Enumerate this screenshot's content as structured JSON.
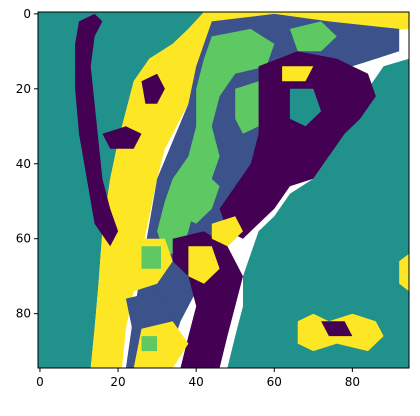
{
  "chart_data": {
    "type": "heatmap",
    "title": "",
    "xlabel": "",
    "ylabel": "",
    "rows": 95,
    "cols": 95,
    "xlim": [
      -0.5,
      94.5
    ],
    "ylim": [
      94.5,
      -0.5
    ],
    "x_ticks": [
      0,
      20,
      40,
      60,
      80
    ],
    "y_ticks": [
      0,
      20,
      40,
      60,
      80
    ],
    "grid": false,
    "colormap": "viridis",
    "class_colors": {
      "0": "#440154",
      "1": "#3b528b",
      "2": "#21918c",
      "3": "#5ec962",
      "4": "#fde725"
    },
    "regions": [
      {
        "class": 2,
        "polygon": [
          [
            -0.5,
            -0.5
          ],
          [
            42,
            -0.5
          ],
          [
            38,
            4
          ],
          [
            34,
            8
          ],
          [
            28,
            12
          ],
          [
            24,
            18
          ],
          [
            22,
            26
          ],
          [
            20,
            34
          ],
          [
            18,
            44
          ],
          [
            16,
            58
          ],
          [
            15,
            72
          ],
          [
            14,
            84
          ],
          [
            13,
            94.5
          ],
          [
            -0.5,
            94.5
          ]
        ]
      },
      {
        "class": 4,
        "polygon": [
          [
            42,
            -0.5
          ],
          [
            94.5,
            -0.5
          ],
          [
            94.5,
            4
          ],
          [
            70,
            6
          ],
          [
            56,
            10
          ],
          [
            46,
            14
          ],
          [
            40,
            20
          ],
          [
            36,
            28
          ],
          [
            32,
            36
          ],
          [
            30,
            44
          ],
          [
            28,
            54
          ],
          [
            26,
            64
          ],
          [
            24,
            74
          ],
          [
            22,
            84
          ],
          [
            21,
            94.5
          ],
          [
            13,
            94.5
          ],
          [
            14,
            84
          ],
          [
            15,
            72
          ],
          [
            16,
            58
          ],
          [
            18,
            44
          ],
          [
            20,
            34
          ],
          [
            22,
            26
          ],
          [
            24,
            18
          ],
          [
            28,
            12
          ],
          [
            34,
            8
          ],
          [
            38,
            4
          ]
        ]
      },
      {
        "class": 1,
        "polygon": [
          [
            44,
            2
          ],
          [
            60,
            0
          ],
          [
            74,
            2
          ],
          [
            92,
            4
          ],
          [
            92,
            10
          ],
          [
            80,
            14
          ],
          [
            70,
            12
          ],
          [
            62,
            16
          ],
          [
            58,
            22
          ],
          [
            56,
            30
          ],
          [
            58,
            38
          ],
          [
            56,
            46
          ],
          [
            52,
            52
          ],
          [
            50,
            60
          ],
          [
            44,
            66
          ],
          [
            40,
            74
          ],
          [
            36,
            82
          ],
          [
            32,
            94.5
          ],
          [
            22,
            94.5
          ],
          [
            24,
            80
          ],
          [
            26,
            68
          ],
          [
            28,
            56
          ],
          [
            30,
            44
          ],
          [
            34,
            34
          ],
          [
            38,
            24
          ],
          [
            40,
            14
          ]
        ]
      },
      {
        "class": 3,
        "polygon": [
          [
            44,
            6
          ],
          [
            54,
            4
          ],
          [
            60,
            8
          ],
          [
            58,
            14
          ],
          [
            50,
            16
          ],
          [
            46,
            22
          ],
          [
            44,
            30
          ],
          [
            46,
            38
          ],
          [
            44,
            44
          ],
          [
            40,
            50
          ],
          [
            38,
            58
          ],
          [
            36,
            64
          ],
          [
            32,
            64
          ],
          [
            30,
            58
          ],
          [
            32,
            50
          ],
          [
            34,
            44
          ],
          [
            38,
            38
          ],
          [
            40,
            30
          ],
          [
            40,
            20
          ],
          [
            42,
            12
          ]
        ]
      },
      {
        "class": 3,
        "polygon": [
          [
            50,
            20
          ],
          [
            56,
            18
          ],
          [
            58,
            24
          ],
          [
            56,
            30
          ],
          [
            52,
            32
          ],
          [
            50,
            28
          ]
        ]
      },
      {
        "class": 3,
        "polygon": [
          [
            34,
            44
          ],
          [
            42,
            42
          ],
          [
            46,
            46
          ],
          [
            44,
            52
          ],
          [
            40,
            56
          ],
          [
            36,
            54
          ]
        ]
      },
      {
        "class": 3,
        "polygon": [
          [
            64,
            4
          ],
          [
            72,
            2
          ],
          [
            76,
            6
          ],
          [
            72,
            10
          ],
          [
            66,
            10
          ]
        ]
      },
      {
        "class": 0,
        "polygon": [
          [
            10,
            2
          ],
          [
            14,
            0
          ],
          [
            16,
            2
          ],
          [
            14,
            6
          ],
          [
            13,
            14
          ],
          [
            14,
            24
          ],
          [
            15,
            34
          ],
          [
            16,
            44
          ],
          [
            18,
            52
          ],
          [
            20,
            58
          ],
          [
            18,
            62
          ],
          [
            14,
            56
          ],
          [
            12,
            44
          ],
          [
            10,
            32
          ],
          [
            9,
            20
          ],
          [
            9,
            8
          ]
        ]
      },
      {
        "class": 0,
        "polygon": [
          [
            26,
            18
          ],
          [
            30,
            16
          ],
          [
            32,
            20
          ],
          [
            30,
            24
          ],
          [
            27,
            24
          ]
        ]
      },
      {
        "class": 0,
        "polygon": [
          [
            16,
            32
          ],
          [
            22,
            30
          ],
          [
            26,
            32
          ],
          [
            24,
            36
          ],
          [
            18,
            36
          ]
        ]
      },
      {
        "class": 2,
        "polygon": [
          [
            94.5,
            12
          ],
          [
            88,
            14
          ],
          [
            84,
            20
          ],
          [
            80,
            26
          ],
          [
            76,
            32
          ],
          [
            74,
            38
          ],
          [
            70,
            44
          ],
          [
            64,
            48
          ],
          [
            60,
            54
          ],
          [
            56,
            58
          ],
          [
            54,
            64
          ],
          [
            52,
            70
          ],
          [
            52,
            78
          ],
          [
            50,
            86
          ],
          [
            48,
            94.5
          ],
          [
            94.5,
            94.5
          ]
        ]
      },
      {
        "class": 0,
        "polygon": [
          [
            56,
            14
          ],
          [
            66,
            10
          ],
          [
            76,
            12
          ],
          [
            84,
            16
          ],
          [
            86,
            22
          ],
          [
            82,
            28
          ],
          [
            78,
            32
          ],
          [
            74,
            38
          ],
          [
            70,
            44
          ],
          [
            64,
            46
          ],
          [
            60,
            52
          ],
          [
            56,
            56
          ],
          [
            52,
            60
          ],
          [
            48,
            58
          ],
          [
            46,
            52
          ],
          [
            50,
            46
          ],
          [
            54,
            40
          ],
          [
            56,
            32
          ],
          [
            56,
            22
          ]
        ]
      },
      {
        "class": 2,
        "polygon": [
          [
            64,
            20
          ],
          [
            70,
            20
          ],
          [
            72,
            26
          ],
          [
            68,
            30
          ],
          [
            64,
            28
          ]
        ]
      },
      {
        "class": 4,
        "polygon": [
          [
            62,
            14
          ],
          [
            70,
            14
          ],
          [
            68,
            18
          ],
          [
            62,
            18
          ]
        ]
      },
      {
        "class": 0,
        "polygon": [
          [
            34,
            60
          ],
          [
            42,
            58
          ],
          [
            48,
            62
          ],
          [
            52,
            70
          ],
          [
            50,
            78
          ],
          [
            48,
            86
          ],
          [
            46,
            94.5
          ],
          [
            36,
            94.5
          ],
          [
            38,
            86
          ],
          [
            40,
            78
          ],
          [
            38,
            70
          ],
          [
            34,
            66
          ]
        ]
      },
      {
        "class": 4,
        "polygon": [
          [
            38,
            62
          ],
          [
            44,
            62
          ],
          [
            46,
            68
          ],
          [
            42,
            72
          ],
          [
            38,
            70
          ]
        ]
      },
      {
        "class": 4,
        "polygon": [
          [
            24,
            60
          ],
          [
            32,
            60
          ],
          [
            34,
            66
          ],
          [
            30,
            72
          ],
          [
            24,
            74
          ],
          [
            22,
            68
          ]
        ]
      },
      {
        "class": 3,
        "polygon": [
          [
            26,
            62
          ],
          [
            31,
            62
          ],
          [
            31,
            68
          ],
          [
            26,
            68
          ]
        ]
      },
      {
        "class": 1,
        "polygon": [
          [
            22,
            76
          ],
          [
            30,
            74
          ],
          [
            34,
            80
          ],
          [
            30,
            86
          ],
          [
            24,
            86
          ]
        ]
      },
      {
        "class": 4,
        "polygon": [
          [
            26,
            84
          ],
          [
            34,
            82
          ],
          [
            38,
            88
          ],
          [
            34,
            94.5
          ],
          [
            24,
            94.5
          ]
        ]
      },
      {
        "class": 3,
        "polygon": [
          [
            26,
            86
          ],
          [
            30,
            86
          ],
          [
            30,
            90
          ],
          [
            26,
            90
          ]
        ]
      },
      {
        "class": 4,
        "polygon": [
          [
            44,
            56
          ],
          [
            50,
            54
          ],
          [
            52,
            58
          ],
          [
            48,
            62
          ],
          [
            44,
            60
          ]
        ]
      },
      {
        "class": 4,
        "polygon": [
          [
            66,
            82
          ],
          [
            70,
            80
          ],
          [
            74,
            82
          ],
          [
            80,
            80
          ],
          [
            86,
            82
          ],
          [
            88,
            86
          ],
          [
            84,
            90
          ],
          [
            76,
            88
          ],
          [
            70,
            90
          ],
          [
            66,
            88
          ]
        ]
      },
      {
        "class": 0,
        "polygon": [
          [
            72,
            82
          ],
          [
            78,
            82
          ],
          [
            80,
            86
          ],
          [
            74,
            86
          ]
        ]
      },
      {
        "class": 4,
        "polygon": [
          [
            92,
            66
          ],
          [
            94.5,
            64
          ],
          [
            94.5,
            74
          ],
          [
            92,
            72
          ]
        ]
      }
    ]
  }
}
